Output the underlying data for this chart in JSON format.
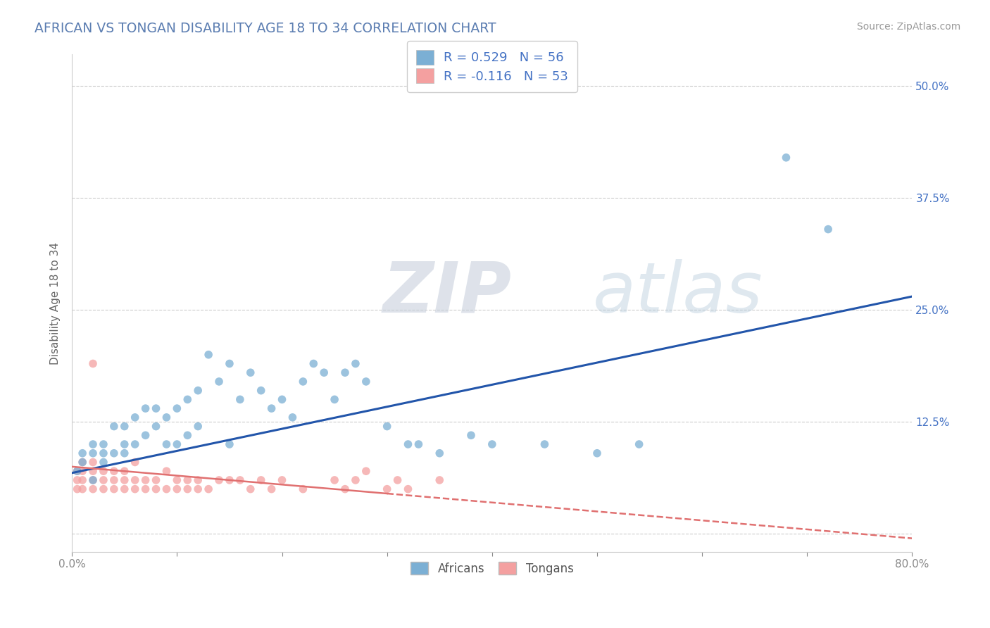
{
  "title": "AFRICAN VS TONGAN DISABILITY AGE 18 TO 34 CORRELATION CHART",
  "source": "Source: ZipAtlas.com",
  "ylabel": "Disability Age 18 to 34",
  "xlim": [
    0.0,
    0.8
  ],
  "ylim": [
    -0.02,
    0.535
  ],
  "x_ticks": [
    0.0,
    0.1,
    0.2,
    0.3,
    0.4,
    0.5,
    0.6,
    0.7,
    0.8
  ],
  "x_tick_labels": [
    "0.0%",
    "",
    "",
    "",
    "",
    "",
    "",
    "",
    "80.0%"
  ],
  "y_tick_labels": [
    "",
    "12.5%",
    "25.0%",
    "37.5%",
    "50.0%"
  ],
  "y_ticks": [
    0.0,
    0.125,
    0.25,
    0.375,
    0.5
  ],
  "african_color": "#7BAFD4",
  "tongan_color": "#F4A0A0",
  "line_african_color": "#2255AA",
  "line_tongan_color": "#E07070",
  "african_R": 0.529,
  "african_N": 56,
  "tongan_R": -0.116,
  "tongan_N": 53,
  "watermark": "ZIPatlas",
  "title_color": "#5B7DB1",
  "source_color": "#999999",
  "ylabel_color": "#666666",
  "tick_color": "#888888",
  "grid_color": "#CCCCCC",
  "african_line_y0": 0.068,
  "african_line_y1": 0.265,
  "tongan_line_y0": 0.075,
  "tongan_line_y1": -0.005,
  "african_x": [
    0.005,
    0.01,
    0.01,
    0.02,
    0.02,
    0.02,
    0.03,
    0.03,
    0.03,
    0.04,
    0.04,
    0.05,
    0.05,
    0.05,
    0.06,
    0.06,
    0.07,
    0.07,
    0.08,
    0.08,
    0.09,
    0.09,
    0.1,
    0.1,
    0.11,
    0.11,
    0.12,
    0.12,
    0.13,
    0.14,
    0.15,
    0.15,
    0.16,
    0.17,
    0.18,
    0.19,
    0.2,
    0.21,
    0.22,
    0.23,
    0.24,
    0.25,
    0.26,
    0.27,
    0.28,
    0.3,
    0.32,
    0.33,
    0.35,
    0.38,
    0.4,
    0.45,
    0.5,
    0.54,
    0.68,
    0.72
  ],
  "african_y": [
    0.07,
    0.08,
    0.09,
    0.06,
    0.09,
    0.1,
    0.08,
    0.09,
    0.1,
    0.09,
    0.12,
    0.09,
    0.1,
    0.12,
    0.1,
    0.13,
    0.11,
    0.14,
    0.12,
    0.14,
    0.1,
    0.13,
    0.1,
    0.14,
    0.11,
    0.15,
    0.12,
    0.16,
    0.2,
    0.17,
    0.1,
    0.19,
    0.15,
    0.18,
    0.16,
    0.14,
    0.15,
    0.13,
    0.17,
    0.19,
    0.18,
    0.15,
    0.18,
    0.19,
    0.17,
    0.12,
    0.1,
    0.1,
    0.09,
    0.11,
    0.1,
    0.1,
    0.09,
    0.1,
    0.42,
    0.34
  ],
  "tongan_x": [
    0.005,
    0.005,
    0.005,
    0.01,
    0.01,
    0.01,
    0.01,
    0.02,
    0.02,
    0.02,
    0.02,
    0.03,
    0.03,
    0.03,
    0.04,
    0.04,
    0.04,
    0.05,
    0.05,
    0.05,
    0.06,
    0.06,
    0.06,
    0.07,
    0.07,
    0.08,
    0.08,
    0.09,
    0.09,
    0.1,
    0.1,
    0.11,
    0.11,
    0.12,
    0.12,
    0.13,
    0.14,
    0.15,
    0.16,
    0.17,
    0.18,
    0.19,
    0.2,
    0.22,
    0.25,
    0.26,
    0.27,
    0.28,
    0.3,
    0.31,
    0.32,
    0.35,
    0.02
  ],
  "tongan_y": [
    0.05,
    0.06,
    0.07,
    0.05,
    0.06,
    0.07,
    0.08,
    0.05,
    0.06,
    0.07,
    0.08,
    0.05,
    0.06,
    0.07,
    0.05,
    0.06,
    0.07,
    0.05,
    0.06,
    0.07,
    0.05,
    0.06,
    0.08,
    0.05,
    0.06,
    0.05,
    0.06,
    0.05,
    0.07,
    0.05,
    0.06,
    0.05,
    0.06,
    0.05,
    0.06,
    0.05,
    0.06,
    0.06,
    0.06,
    0.05,
    0.06,
    0.05,
    0.06,
    0.05,
    0.06,
    0.05,
    0.06,
    0.07,
    0.05,
    0.06,
    0.05,
    0.06,
    0.19
  ]
}
